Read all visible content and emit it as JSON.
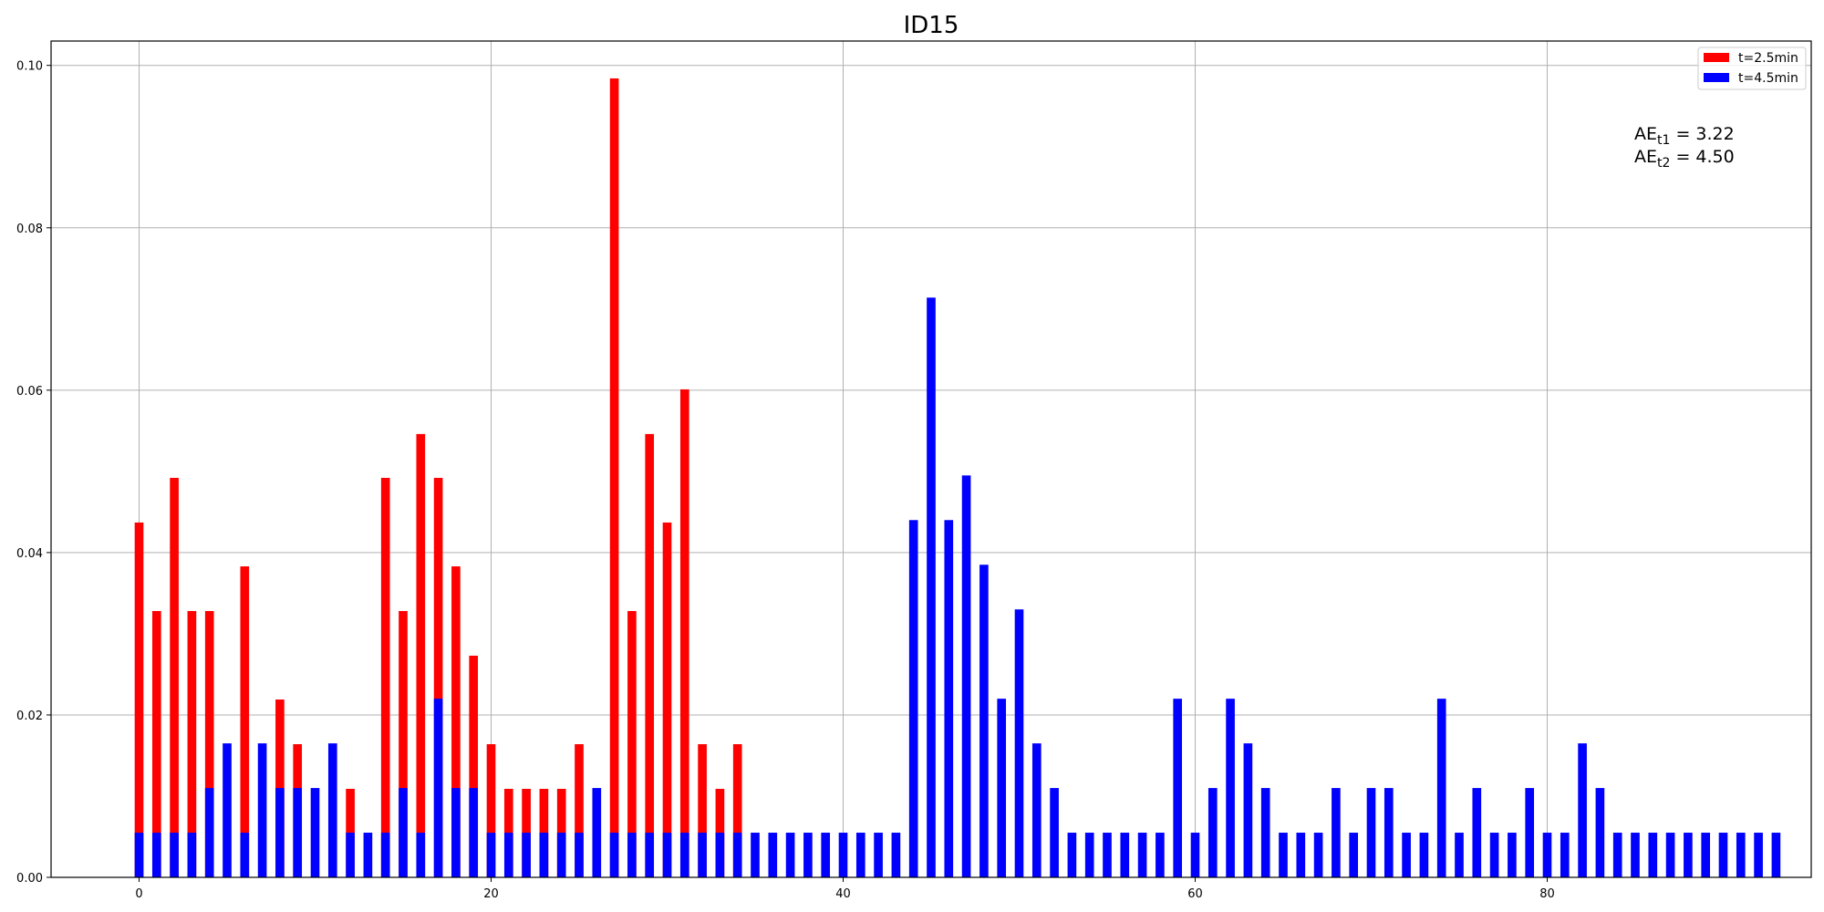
{
  "chart_data": {
    "type": "bar",
    "stacked": false,
    "overlay": true,
    "title": "ID15",
    "xlabel": "",
    "ylabel": "",
    "xlim": [
      -5,
      95
    ],
    "ylim": [
      0,
      0.103
    ],
    "xticks": [
      0,
      20,
      40,
      60,
      80
    ],
    "yticks": [
      0.0,
      0.02,
      0.04,
      0.06,
      0.08,
      0.1
    ],
    "grid": true,
    "legend_position": "top-right",
    "bar_width": 0.5,
    "annotations": [
      {
        "base": "AE",
        "sub": "t1",
        "text": " = 3.22"
      },
      {
        "base": "AE",
        "sub": "t2",
        "text": " = 4.50"
      }
    ],
    "series": [
      {
        "name": "t=2.5min",
        "color": "#ff0000",
        "x": [
          0,
          1,
          2,
          3,
          4,
          6,
          8,
          9,
          12,
          14,
          15,
          16,
          17,
          18,
          19,
          20,
          21,
          22,
          23,
          24,
          25,
          27,
          28,
          29,
          30,
          31,
          32,
          33,
          34
        ],
        "values": [
          0.0437,
          0.0328,
          0.0492,
          0.0328,
          0.0328,
          0.0383,
          0.0219,
          0.0164,
          0.0109,
          0.0492,
          0.0328,
          0.0546,
          0.0492,
          0.0383,
          0.0273,
          0.0164,
          0.0109,
          0.0109,
          0.0109,
          0.0109,
          0.0164,
          0.0984,
          0.0328,
          0.0546,
          0.0437,
          0.0601,
          0.0164,
          0.0109,
          0.0164
        ]
      },
      {
        "name": "t=4.5min",
        "color": "#0000ff",
        "x": [
          0,
          1,
          2,
          3,
          4,
          5,
          6,
          7,
          8,
          9,
          10,
          11,
          12,
          13,
          14,
          15,
          16,
          17,
          18,
          19,
          20,
          21,
          22,
          23,
          24,
          25,
          26,
          27,
          28,
          29,
          30,
          31,
          32,
          33,
          34,
          35,
          36,
          37,
          38,
          39,
          40,
          41,
          42,
          43,
          44,
          45,
          46,
          47,
          48,
          49,
          50,
          51,
          52,
          53,
          54,
          55,
          56,
          57,
          58,
          59,
          60,
          61,
          62,
          63,
          64,
          65,
          66,
          67,
          68,
          69,
          70,
          71,
          72,
          73,
          74,
          75,
          76,
          77,
          78,
          79,
          80,
          81,
          82,
          83,
          84,
          85,
          86,
          87,
          88,
          89,
          90,
          91,
          92,
          93
        ],
        "values": [
          0.0055,
          0.0055,
          0.0055,
          0.0055,
          0.011,
          0.0165,
          0.0055,
          0.0165,
          0.011,
          0.011,
          0.011,
          0.0165,
          0.0055,
          0.0055,
          0.0055,
          0.011,
          0.0055,
          0.022,
          0.011,
          0.011,
          0.0055,
          0.0055,
          0.0055,
          0.0055,
          0.0055,
          0.0055,
          0.011,
          0.0055,
          0.0055,
          0.0055,
          0.0055,
          0.0055,
          0.0055,
          0.0055,
          0.0055,
          0.0055,
          0.0055,
          0.0055,
          0.0055,
          0.0055,
          0.0055,
          0.0055,
          0.0055,
          0.0055,
          0.044,
          0.0714,
          0.044,
          0.0495,
          0.0385,
          0.022,
          0.033,
          0.0165,
          0.011,
          0.0055,
          0.0055,
          0.0055,
          0.0055,
          0.0055,
          0.0055,
          0.022,
          0.0055,
          0.011,
          0.022,
          0.0165,
          0.011,
          0.0055,
          0.0055,
          0.0055,
          0.011,
          0.0055,
          0.011,
          0.011,
          0.0055,
          0.0055,
          0.022,
          0.0055,
          0.011,
          0.0055,
          0.0055,
          0.011,
          0.0055,
          0.0055,
          0.0165,
          0.011,
          0.0055,
          0.0055,
          0.0055,
          0.0055,
          0.0055,
          0.0055,
          0.0055,
          0.0055,
          0.0055,
          0.0055
        ]
      }
    ]
  }
}
